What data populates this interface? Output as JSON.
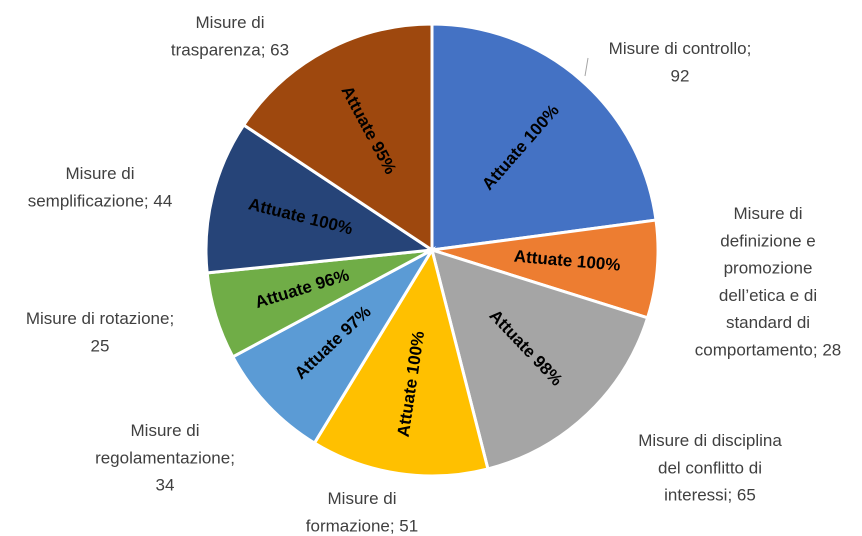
{
  "chart_data": {
    "type": "pie",
    "values": [
      92,
      28,
      65,
      51,
      34,
      25,
      44,
      63
    ],
    "value_labels": [
      [
        "Misure di controllo;",
        "92"
      ],
      [
        "Misure di",
        "definizione e",
        "promozione",
        "dell’etica e di",
        "standard di",
        "comportamento; 28"
      ],
      [
        "Misure di disciplina",
        "del conflitto di",
        "interessi; 65"
      ],
      [
        "Misure di",
        "formazione; 51"
      ],
      [
        "Misure di",
        "regolamentazione;",
        "34"
      ],
      [
        "Misure di rotazione;",
        "25"
      ],
      [
        "Misure di",
        "semplificazione; 44"
      ],
      [
        "Misure di",
        "trasparenza; 63"
      ]
    ],
    "colors": [
      "#4472c4",
      "#ed7d31",
      "#a5a5a5",
      "#ffc000",
      "#5b9bd5",
      "#70ad47",
      "#264478",
      "#9e480e"
    ],
    "attuate": {
      "values": [
        100,
        100,
        98,
        100,
        97,
        96,
        100,
        95
      ],
      "value_labels": [
        "Attuate 100%",
        "Attuate 100%",
        "Attuate 98%",
        "Attuate 100%",
        "Attuate 97%",
        "Attuate 96%",
        "Attuate 100%",
        "Attuate 95%"
      ]
    }
  }
}
